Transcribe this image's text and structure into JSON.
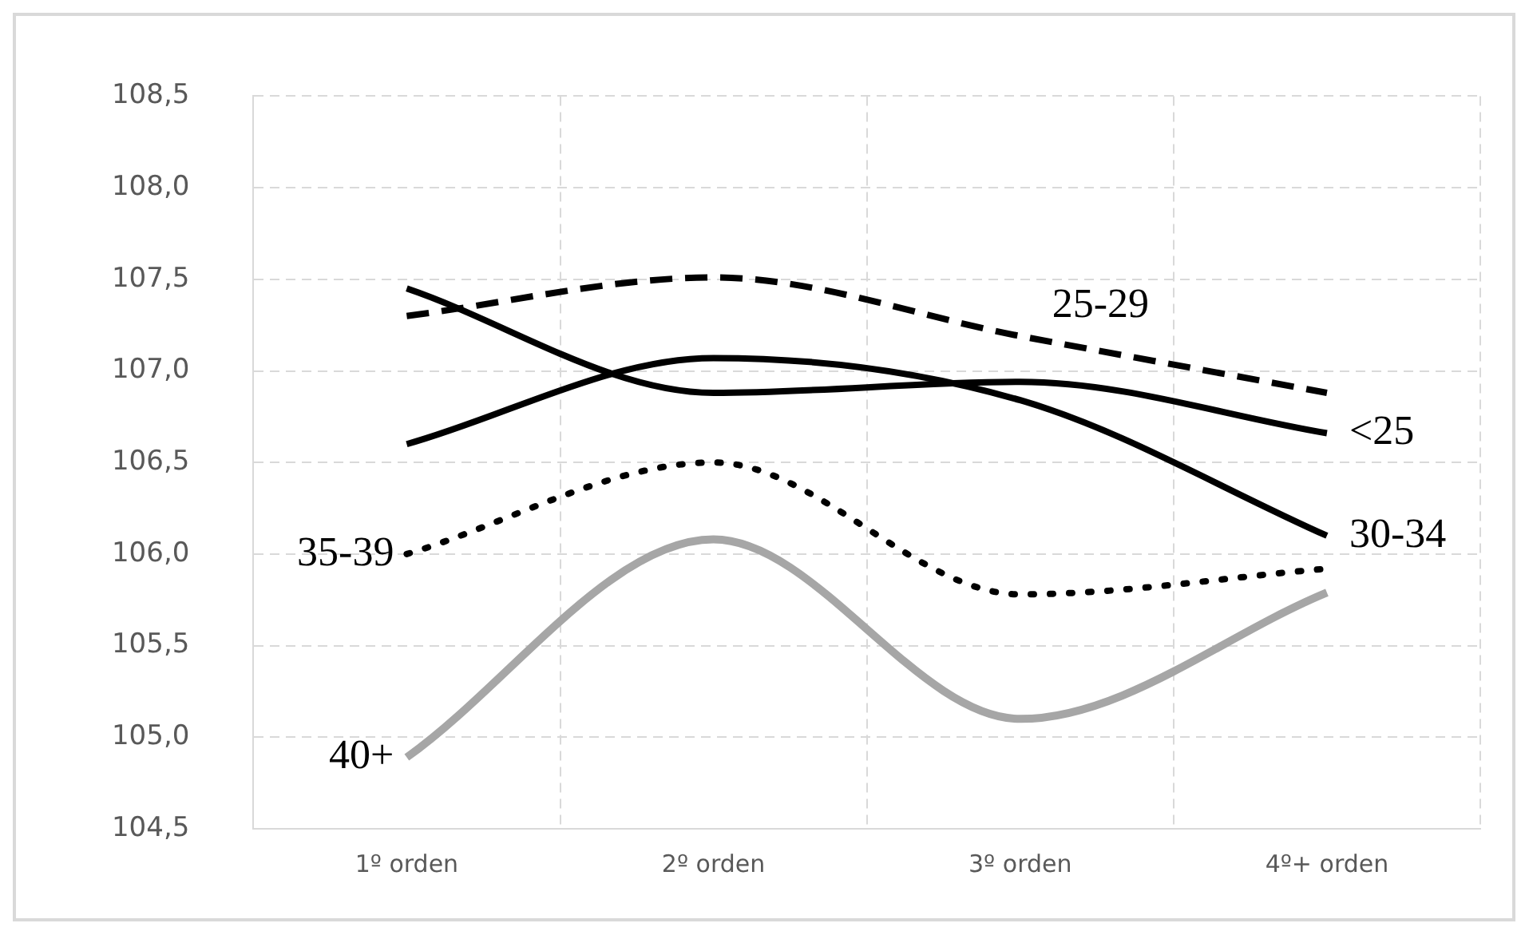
{
  "chart_data": {
    "type": "line",
    "categories": [
      "1º orden",
      "2º orden",
      "3º orden",
      "4º+ orden"
    ],
    "series": [
      {
        "name": "<25",
        "color": "#000000",
        "values": [
          107.45,
          106.88,
          106.94,
          106.66
        ],
        "line_style": "solid"
      },
      {
        "name": "25-29",
        "color": "#000000",
        "values": [
          107.3,
          107.51,
          107.19,
          106.88
        ],
        "line_style": "dashed"
      },
      {
        "name": "30-34",
        "color": "#000000",
        "values": [
          106.6,
          107.07,
          106.84,
          106.1
        ],
        "line_style": "solid"
      },
      {
        "name": "35-39",
        "color": "#000000",
        "values": [
          106.0,
          106.5,
          105.78,
          105.92
        ],
        "line_style": "dotted"
      },
      {
        "name": "40+",
        "color": "#a6a6a6",
        "values": [
          104.89,
          106.08,
          105.1,
          105.79
        ],
        "line_style": "solid"
      }
    ],
    "ylim": [
      104.5,
      108.5
    ],
    "yticks": [
      {
        "value": 104.5,
        "label": "104,5"
      },
      {
        "value": 105,
        "label": "105,0"
      },
      {
        "value": 105.5,
        "label": "105,5"
      },
      {
        "value": 106,
        "label": "106,0"
      },
      {
        "value": 106.5,
        "label": "106,5"
      },
      {
        "value": 107,
        "label": "107,0"
      },
      {
        "value": 107.5,
        "label": "107,5"
      },
      {
        "value": 108,
        "label": "108,0"
      },
      {
        "value": 108.5,
        "label": "108,5"
      }
    ],
    "grid": true,
    "legend": false,
    "marker": "none"
  }
}
